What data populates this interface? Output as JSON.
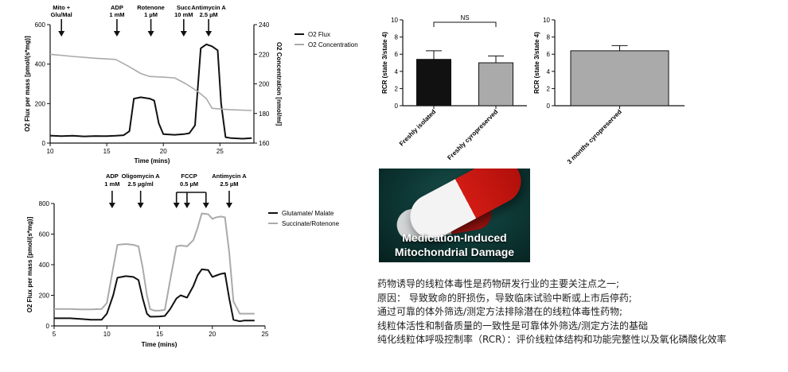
{
  "chart_data": [
    {
      "type": "line",
      "ylabel": "O2 Flux per mass [pmol/(s*mg)]",
      "y2label": "O2 Concentration [nmol/ml]",
      "xlabel": "Time (mins)",
      "xlim": [
        10,
        28
      ],
      "xticks": [
        10,
        15,
        20,
        25
      ],
      "ylim": [
        0,
        600
      ],
      "yticks": [
        0,
        200,
        400,
        600
      ],
      "y2lim": [
        160,
        240
      ],
      "y2ticks": [
        160,
        180,
        200,
        220,
        240
      ],
      "annotations": [
        {
          "line1": "Mito +",
          "line2": "Glu/Mal",
          "x": 11.0
        },
        {
          "line1": "ADP",
          "line2": "1 mM",
          "x": 15.9
        },
        {
          "line1": "Rotenone",
          "line2": "1 µM",
          "x": 18.9
        },
        {
          "line1": "Succ",
          "line2": "10 mM",
          "x": 21.8
        },
        {
          "line1": "Antimycin A",
          "line2": "2.5 µM",
          "x": 24.0
        }
      ],
      "series": [
        {
          "name": "O2 Flux",
          "axis": "left",
          "color": "#111111",
          "x": [
            10.0,
            11.0,
            12.0,
            13.0,
            14.0,
            15.0,
            15.8,
            16.5,
            17.0,
            17.4,
            18.0,
            18.8,
            19.2,
            19.6,
            20.0,
            21.0,
            21.8,
            22.3,
            22.8,
            23.3,
            23.8,
            24.3,
            24.8,
            25.1,
            25.5,
            26.0,
            27.0,
            27.8
          ],
          "y": [
            38,
            35,
            37,
            34,
            36,
            35,
            37,
            40,
            60,
            225,
            232,
            225,
            215,
            100,
            45,
            42,
            45,
            50,
            90,
            480,
            500,
            490,
            470,
            200,
            30,
            25,
            22,
            25
          ]
        },
        {
          "name": "O2 Concentration",
          "axis": "right",
          "color": "#aaaaaa",
          "x": [
            10.0,
            12.0,
            14.0,
            15.8,
            17.0,
            18.0,
            18.8,
            20.0,
            21.0,
            22.0,
            23.0,
            23.8,
            24.3,
            25.0,
            26.0,
            27.8
          ],
          "y": [
            220,
            218.5,
            217.3,
            216.5,
            211.5,
            207,
            205,
            204.5,
            204,
            200,
            195,
            190,
            183.5,
            183,
            182.5,
            182
          ]
        }
      ]
    },
    {
      "type": "bar",
      "ylabel": "RCR (state 3/state 4)",
      "ylim": [
        0,
        10
      ],
      "yticks": [
        0,
        2,
        4,
        6,
        8,
        10
      ],
      "categories": [
        "Freshly isolated",
        "Freshly cyropreserved"
      ],
      "values": [
        5.4,
        5.0
      ],
      "errors": [
        1.0,
        0.8
      ],
      "colors": [
        "#111111",
        "#aaaaaa"
      ],
      "annotation": "NS"
    },
    {
      "type": "bar",
      "ylabel": "RCR (state 3/state 4)",
      "ylim": [
        0,
        10
      ],
      "yticks": [
        0,
        2,
        4,
        6,
        8,
        10
      ],
      "categories": [
        "3 months cyropreserved"
      ],
      "values": [
        6.4
      ],
      "errors": [
        0.6
      ],
      "colors": [
        "#aaaaaa"
      ]
    },
    {
      "type": "line",
      "ylabel": "O2 Flux per mass [pmol/(s*mg)]",
      "xlabel": "Time (mins)",
      "xlim": [
        5,
        25
      ],
      "xticks": [
        5,
        10,
        15,
        20,
        25
      ],
      "ylim": [
        0,
        800
      ],
      "yticks": [
        0,
        200,
        400,
        600,
        800
      ],
      "annotations": [
        {
          "line1": "ADP",
          "line2": "1 mM",
          "x": 10.5
        },
        {
          "line1": "Oligomycin A",
          "line2": "2.5 µg/ml",
          "x": 13.2
        },
        {
          "line1": "FCCP",
          "line2": "0.5 µM",
          "x": 17.8,
          "arrows": [
            16.6,
            17.6,
            19.4
          ]
        },
        {
          "line1": "Antimycin A",
          "line2": "2.5 µM",
          "x": 21.6
        }
      ],
      "series": [
        {
          "name": "Glutamate/ Malate",
          "color": "#111111",
          "x": [
            5.0,
            6.5,
            7.5,
            8.5,
            9.5,
            10.0,
            10.6,
            11.0,
            11.8,
            12.5,
            13.0,
            13.4,
            13.8,
            14.1,
            14.5,
            15.0,
            15.5,
            16.0,
            16.6,
            17.0,
            17.6,
            18.2,
            18.6,
            19.0,
            19.6,
            20.0,
            20.4,
            20.8,
            21.2,
            21.6,
            22.0,
            22.6,
            23.0,
            24.0
          ],
          "y": [
            50,
            50,
            45,
            40,
            40,
            80,
            200,
            315,
            325,
            320,
            300,
            180,
            80,
            60,
            60,
            62,
            65,
            110,
            180,
            200,
            185,
            260,
            330,
            370,
            365,
            320,
            330,
            340,
            345,
            180,
            40,
            30,
            35,
            35
          ]
        },
        {
          "name": "Succinate/Rotenone",
          "color": "#aaaaaa",
          "x": [
            5.0,
            6.5,
            7.5,
            8.5,
            9.5,
            10.0,
            10.6,
            11.0,
            11.8,
            12.5,
            13.0,
            13.4,
            13.8,
            14.1,
            14.5,
            15.0,
            15.5,
            16.0,
            16.6,
            17.0,
            17.6,
            18.2,
            18.6,
            19.0,
            19.6,
            20.0,
            20.4,
            20.8,
            21.2,
            21.6,
            22.0,
            22.6,
            23.0,
            24.0
          ],
          "y": [
            110,
            110,
            108,
            108,
            110,
            150,
            380,
            530,
            535,
            530,
            520,
            380,
            200,
            110,
            100,
            100,
            105,
            300,
            520,
            525,
            520,
            560,
            640,
            735,
            730,
            700,
            710,
            715,
            710,
            480,
            160,
            80,
            80,
            80
          ]
        }
      ]
    }
  ],
  "image_card": {
    "caption_line1": "Medication-Induced",
    "caption_line2": "Mitochondrial Damage"
  },
  "notes": [
    "药物诱导的线粒体毒性是药物研发行业的主要关注点之一;",
    "原因： 导致致命的肝损伤，导致临床试验中断或上市后停药;",
    "通过可靠的体外筛选/测定方法排除潜在的线粒体毒性药物;",
    "线粒体活性和制备质量的一致性是可靠体外筛选/测定方法的基础",
    "纯化线粒体呼吸控制率（RCR）：评价线粒体结构和功能完整性以及氧化磷酸化效率"
  ]
}
